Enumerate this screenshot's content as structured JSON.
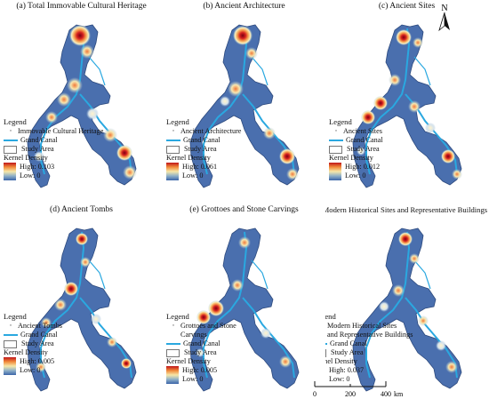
{
  "panels": [
    {
      "title": "(a) Total Immovable Cultural Heritage",
      "legend_item": "Immovable Cultural Heritage",
      "kd_high": "High: 0.103",
      "kd_low": "Low: 0"
    },
    {
      "title": "(b) Ancient Architecture",
      "legend_item": "Ancient Architecture",
      "kd_high": "High: 0.061",
      "kd_low": "Low: 0"
    },
    {
      "title": "(c) Ancient Sites",
      "legend_item": "Ancient Sites",
      "kd_high": "High: 0.012",
      "kd_low": "Low: 0"
    },
    {
      "title": "(d) Ancient Tombs",
      "legend_item": "Ancient Tombs",
      "kd_high": "High: 0.005",
      "kd_low": "Low: 0"
    },
    {
      "title": "(e) Grottoes and Stone Carvings",
      "legend_item_1": "Grottoes and Stone",
      "legend_item_2": "Carvings",
      "kd_high": "High: 0.005",
      "kd_low": "Low: 0"
    },
    {
      "title": "(f) Modern Historical Sites and Representative Buildings",
      "legend_item_1": "Modern Historical Sites",
      "legend_item_2": "and Representative Buildings",
      "kd_high": "High: 0.037",
      "kd_low": "Low: 0"
    }
  ],
  "legend": {
    "title": "Legend",
    "point_symbol": "·",
    "canal": "Grand Canal",
    "study_area": "Study Area",
    "kd_title": "Kernel Density"
  },
  "north": "N",
  "scale": {
    "t0": "0",
    "t1": "200",
    "t2": "400",
    "unit": "km"
  },
  "colors": {
    "low": "#3b64a8",
    "high": "#c0151a",
    "canal": "#2aa8e0",
    "mid": "#f7e7a8"
  }
}
